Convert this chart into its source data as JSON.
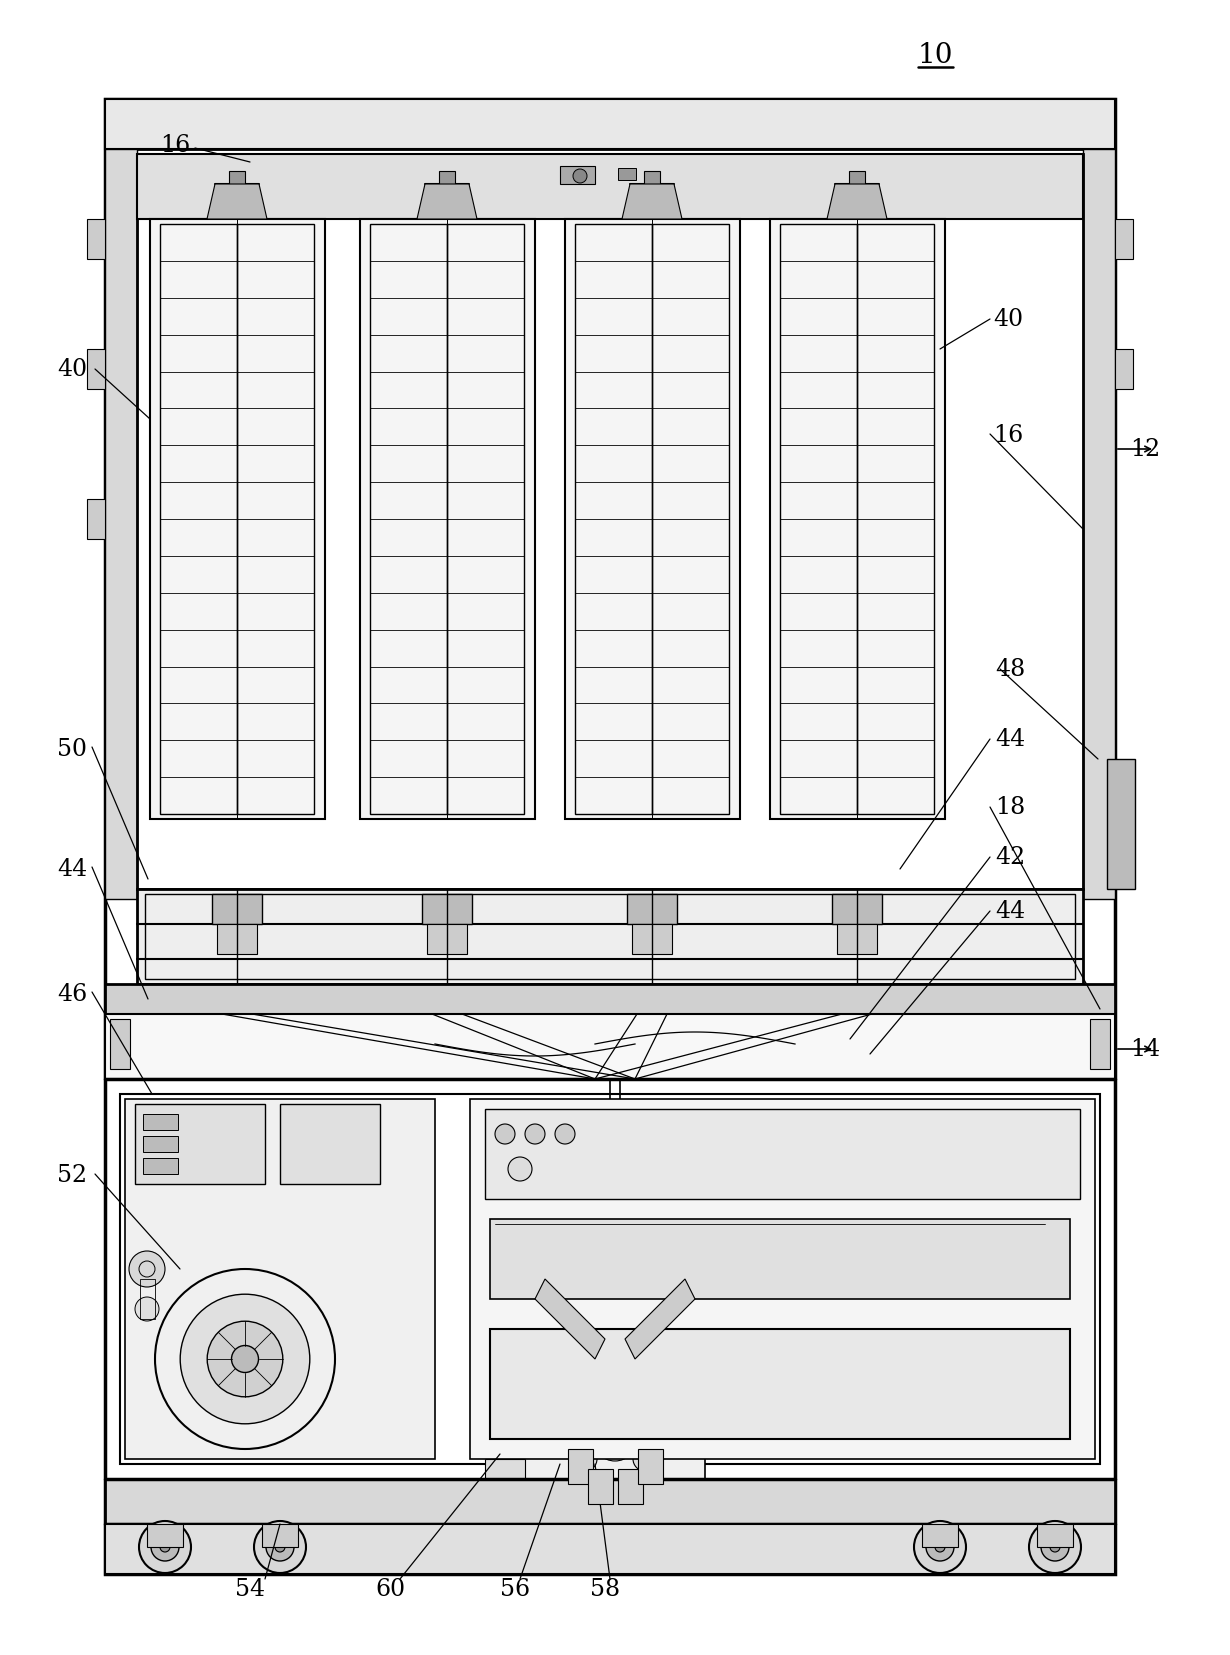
{
  "background_color": "#ffffff",
  "line_color": "#000000",
  "fig_width": 12.3,
  "fig_height": 16.56,
  "dpi": 100,
  "title": "10",
  "labels": [
    "10",
    "12",
    "14",
    "16",
    "16",
    "18",
    "40",
    "40",
    "42",
    "44",
    "44",
    "44",
    "46",
    "48",
    "50",
    "52",
    "54",
    "56",
    "58",
    "60"
  ]
}
